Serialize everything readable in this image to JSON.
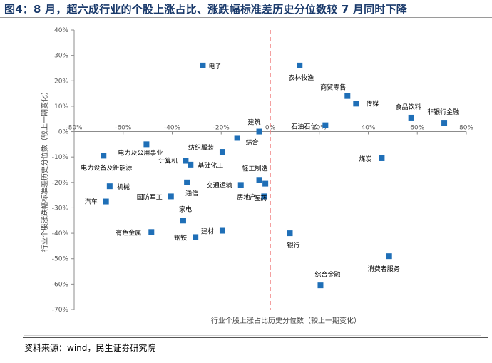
{
  "figure": {
    "title": "图4：8 月，超六成行业的个股上涨占比、涨跌幅标准差历史分位数较 7 月同时下降",
    "source": "资料来源：wind，民生证券研究院"
  },
  "colors": {
    "marker": "#1f6fb7",
    "divider": "#f08080",
    "axis": "#8c8c8c",
    "tick_text": "#595959"
  },
  "chart_data": {
    "type": "scatter",
    "title": "",
    "xlabel": "行业个股上涨占比历史分位数（较上一期变化）",
    "ylabel": "行业个股涨跌幅标准差历史分位数（较上一期变化）",
    "xlim": [
      -80,
      80
    ],
    "ylim": [
      -70,
      40
    ],
    "x_ticks": [
      -80,
      -60,
      -40,
      -20,
      0,
      20,
      40,
      60,
      80
    ],
    "y_ticks": [
      40,
      30,
      20,
      10,
      0,
      -10,
      -20,
      -30,
      -40,
      -50,
      -60,
      -70
    ],
    "tick_suffix": "%",
    "vertical_reference_x": 0,
    "grid": false,
    "points": [
      {
        "name": "电子",
        "x": -27.5,
        "y": 26
      },
      {
        "name": "农林牧渔",
        "x": 12,
        "y": 26
      },
      {
        "name": "商贸零售",
        "x": 31.5,
        "y": 14
      },
      {
        "name": "传媒",
        "x": 35,
        "y": 11
      },
      {
        "name": "食品饮料",
        "x": 57.5,
        "y": 5.5
      },
      {
        "name": "非银行金融",
        "x": 71,
        "y": 3.5
      },
      {
        "name": "石油石化",
        "x": 22.5,
        "y": 2.5
      },
      {
        "name": "建筑",
        "x": -4.5,
        "y": 0
      },
      {
        "name": "综合",
        "x": -13.5,
        "y": -2.5
      },
      {
        "name": "纺织服装",
        "x": -19.5,
        "y": -8
      },
      {
        "name": "电力设备及新能源",
        "x": -68,
        "y": -9.5
      },
      {
        "name": "电力及公用事业",
        "x": -50.5,
        "y": -5
      },
      {
        "name": "计算机",
        "x": -34.5,
        "y": -11.5
      },
      {
        "name": "基础化工",
        "x": -32.5,
        "y": -13
      },
      {
        "name": "煤炭",
        "x": 45.5,
        "y": -10.5
      },
      {
        "name": "轻工制造",
        "x": -4.5,
        "y": -19
      },
      {
        "name": "通信",
        "x": -34,
        "y": -20
      },
      {
        "name": "交通运输",
        "x": -12,
        "y": -21
      },
      {
        "name": "机械",
        "x": -65.5,
        "y": -21.5
      },
      {
        "name": "国防军工",
        "x": -40.5,
        "y": -25.5
      },
      {
        "name": "房地产",
        "x": -2.5,
        "y": -25.5
      },
      {
        "name": "汽车",
        "x": -67,
        "y": -27.5
      },
      {
        "name": "家电",
        "x": -35.5,
        "y": -35
      },
      {
        "name": "有色金属",
        "x": -48.5,
        "y": -39.5
      },
      {
        "name": "建材",
        "x": -19.5,
        "y": -39
      },
      {
        "name": "钢铁",
        "x": -30.5,
        "y": -41.5
      },
      {
        "name": "医药",
        "x": -2,
        "y": -20.5
      },
      {
        "name": "银行",
        "x": 8,
        "y": -40
      },
      {
        "name": "消费者服务",
        "x": 48.5,
        "y": -49
      },
      {
        "name": "综合金融",
        "x": 20.5,
        "y": -60.5
      }
    ]
  }
}
